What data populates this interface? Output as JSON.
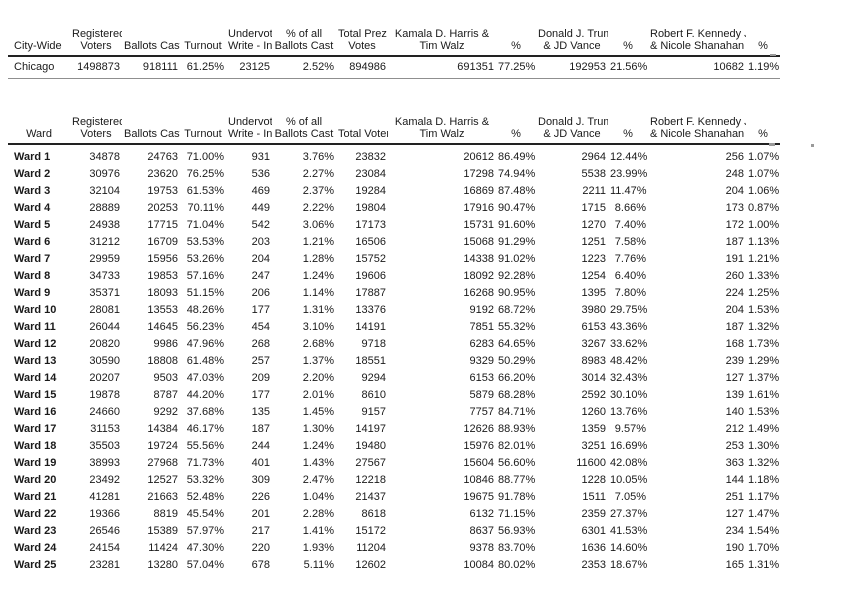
{
  "page": {
    "background": "#ffffff",
    "text_color": "#1a1a1a",
    "rule_color": "#222222"
  },
  "citywide_table": {
    "columns": [
      {
        "l1": "",
        "l2": "City-Wide"
      },
      {
        "l1": "Registered",
        "l2": "Voters"
      },
      {
        "l1": "",
        "l2": "Ballots Cast"
      },
      {
        "l1": "",
        "l2": "Turnout"
      },
      {
        "l1": "Undervote /",
        "l2": "Write - In"
      },
      {
        "l1": "% of all",
        "l2": "Ballots Cast"
      },
      {
        "l1": "Total Prez",
        "l2": "Votes"
      },
      {
        "l1": "Kamala D. Harris &",
        "l2": "Tim Walz"
      },
      {
        "l1": "",
        "l2": "%"
      },
      {
        "l1": "Donald J. Trump",
        "l2": "& JD Vance"
      },
      {
        "l1": "",
        "l2": "%"
      },
      {
        "l1": "Robert F. Kennedy Jr.",
        "l2": "& Nicole Shanahan"
      },
      {
        "l1": "",
        "l2": "%"
      }
    ],
    "rows": [
      {
        "label": "Chicago",
        "values": [
          "1498873",
          "918111",
          "61.25%",
          "23125",
          "2.52%",
          "894986",
          "691351",
          "77.25%",
          "192953",
          "21.56%",
          "10682",
          "1.19%"
        ]
      }
    ]
  },
  "ward_table": {
    "columns": [
      {
        "l1": "",
        "l2": "Ward"
      },
      {
        "l1": "Registered",
        "l2": "Voters"
      },
      {
        "l1": "",
        "l2": "Ballots Cast"
      },
      {
        "l1": "",
        "l2": "Turnout"
      },
      {
        "l1": "Undervote /",
        "l2": "Write - In"
      },
      {
        "l1": "% of all",
        "l2": "Ballots Cast"
      },
      {
        "l1": "",
        "l2": "Total Voters"
      },
      {
        "l1": "Kamala D. Harris &",
        "l2": "Tim Walz"
      },
      {
        "l1": "",
        "l2": "%"
      },
      {
        "l1": "Donald J. Trump",
        "l2": "& JD Vance"
      },
      {
        "l1": "",
        "l2": "%"
      },
      {
        "l1": "Robert F. Kennedy Jr.",
        "l2": "& Nicole Shanahan"
      },
      {
        "l1": "",
        "l2": "%"
      }
    ],
    "rows": [
      {
        "label": "Ward 1",
        "values": [
          "34878",
          "24763",
          "71.00%",
          "931",
          "3.76%",
          "23832",
          "20612",
          "86.49%",
          "2964",
          "12.44%",
          "256",
          "1.07%"
        ]
      },
      {
        "label": "Ward 2",
        "values": [
          "30976",
          "23620",
          "76.25%",
          "536",
          "2.27%",
          "23084",
          "17298",
          "74.94%",
          "5538",
          "23.99%",
          "248",
          "1.07%"
        ]
      },
      {
        "label": "Ward 3",
        "values": [
          "32104",
          "19753",
          "61.53%",
          "469",
          "2.37%",
          "19284",
          "16869",
          "87.48%",
          "2211",
          "11.47%",
          "204",
          "1.06%"
        ]
      },
      {
        "label": "Ward 4",
        "values": [
          "28889",
          "20253",
          "70.11%",
          "449",
          "2.22%",
          "19804",
          "17916",
          "90.47%",
          "1715",
          "8.66%",
          "173",
          "0.87%"
        ]
      },
      {
        "label": "Ward 5",
        "values": [
          "24938",
          "17715",
          "71.04%",
          "542",
          "3.06%",
          "17173",
          "15731",
          "91.60%",
          "1270",
          "7.40%",
          "172",
          "1.00%"
        ]
      },
      {
        "label": "Ward 6",
        "values": [
          "31212",
          "16709",
          "53.53%",
          "203",
          "1.21%",
          "16506",
          "15068",
          "91.29%",
          "1251",
          "7.58%",
          "187",
          "1.13%"
        ]
      },
      {
        "label": "Ward 7",
        "values": [
          "29959",
          "15956",
          "53.26%",
          "204",
          "1.28%",
          "15752",
          "14338",
          "91.02%",
          "1223",
          "7.76%",
          "191",
          "1.21%"
        ]
      },
      {
        "label": "Ward 8",
        "values": [
          "34733",
          "19853",
          "57.16%",
          "247",
          "1.24%",
          "19606",
          "18092",
          "92.28%",
          "1254",
          "6.40%",
          "260",
          "1.33%"
        ]
      },
      {
        "label": "Ward 9",
        "values": [
          "35371",
          "18093",
          "51.15%",
          "206",
          "1.14%",
          "17887",
          "16268",
          "90.95%",
          "1395",
          "7.80%",
          "224",
          "1.25%"
        ]
      },
      {
        "label": "Ward 10",
        "values": [
          "28081",
          "13553",
          "48.26%",
          "177",
          "1.31%",
          "13376",
          "9192",
          "68.72%",
          "3980",
          "29.75%",
          "204",
          "1.53%"
        ]
      },
      {
        "label": "Ward 11",
        "values": [
          "26044",
          "14645",
          "56.23%",
          "454",
          "3.10%",
          "14191",
          "7851",
          "55.32%",
          "6153",
          "43.36%",
          "187",
          "1.32%"
        ]
      },
      {
        "label": "Ward 12",
        "values": [
          "20820",
          "9986",
          "47.96%",
          "268",
          "2.68%",
          "9718",
          "6283",
          "64.65%",
          "3267",
          "33.62%",
          "168",
          "1.73%"
        ]
      },
      {
        "label": "Ward 13",
        "values": [
          "30590",
          "18808",
          "61.48%",
          "257",
          "1.37%",
          "18551",
          "9329",
          "50.29%",
          "8983",
          "48.42%",
          "239",
          "1.29%"
        ]
      },
      {
        "label": "Ward 14",
        "values": [
          "20207",
          "9503",
          "47.03%",
          "209",
          "2.20%",
          "9294",
          "6153",
          "66.20%",
          "3014",
          "32.43%",
          "127",
          "1.37%"
        ]
      },
      {
        "label": "Ward 15",
        "values": [
          "19878",
          "8787",
          "44.20%",
          "177",
          "2.01%",
          "8610",
          "5879",
          "68.28%",
          "2592",
          "30.10%",
          "139",
          "1.61%"
        ]
      },
      {
        "label": "Ward 16",
        "values": [
          "24660",
          "9292",
          "37.68%",
          "135",
          "1.45%",
          "9157",
          "7757",
          "84.71%",
          "1260",
          "13.76%",
          "140",
          "1.53%"
        ]
      },
      {
        "label": "Ward 17",
        "values": [
          "31153",
          "14384",
          "46.17%",
          "187",
          "1.30%",
          "14197",
          "12626",
          "88.93%",
          "1359",
          "9.57%",
          "212",
          "1.49%"
        ]
      },
      {
        "label": "Ward 18",
        "values": [
          "35503",
          "19724",
          "55.56%",
          "244",
          "1.24%",
          "19480",
          "15976",
          "82.01%",
          "3251",
          "16.69%",
          "253",
          "1.30%"
        ]
      },
      {
        "label": "Ward 19",
        "values": [
          "38993",
          "27968",
          "71.73%",
          "401",
          "1.43%",
          "27567",
          "15604",
          "56.60%",
          "11600",
          "42.08%",
          "363",
          "1.32%"
        ]
      },
      {
        "label": "Ward 20",
        "values": [
          "23492",
          "12527",
          "53.32%",
          "309",
          "2.47%",
          "12218",
          "10846",
          "88.77%",
          "1228",
          "10.05%",
          "144",
          "1.18%"
        ]
      },
      {
        "label": "Ward 21",
        "values": [
          "41281",
          "21663",
          "52.48%",
          "226",
          "1.04%",
          "21437",
          "19675",
          "91.78%",
          "1511",
          "7.05%",
          "251",
          "1.17%"
        ]
      },
      {
        "label": "Ward 22",
        "values": [
          "19366",
          "8819",
          "45.54%",
          "201",
          "2.28%",
          "8618",
          "6132",
          "71.15%",
          "2359",
          "27.37%",
          "127",
          "1.47%"
        ]
      },
      {
        "label": "Ward 23",
        "values": [
          "26546",
          "15389",
          "57.97%",
          "217",
          "1.41%",
          "15172",
          "8637",
          "56.93%",
          "6301",
          "41.53%",
          "234",
          "1.54%"
        ]
      },
      {
        "label": "Ward 24",
        "values": [
          "24154",
          "11424",
          "47.30%",
          "220",
          "1.93%",
          "11204",
          "9378",
          "83.70%",
          "1636",
          "14.60%",
          "190",
          "1.70%"
        ]
      },
      {
        "label": "Ward 25",
        "values": [
          "23281",
          "13280",
          "57.04%",
          "678",
          "5.11%",
          "12602",
          "10084",
          "80.02%",
          "2353",
          "18.67%",
          "165",
          "1.31%"
        ]
      }
    ]
  }
}
